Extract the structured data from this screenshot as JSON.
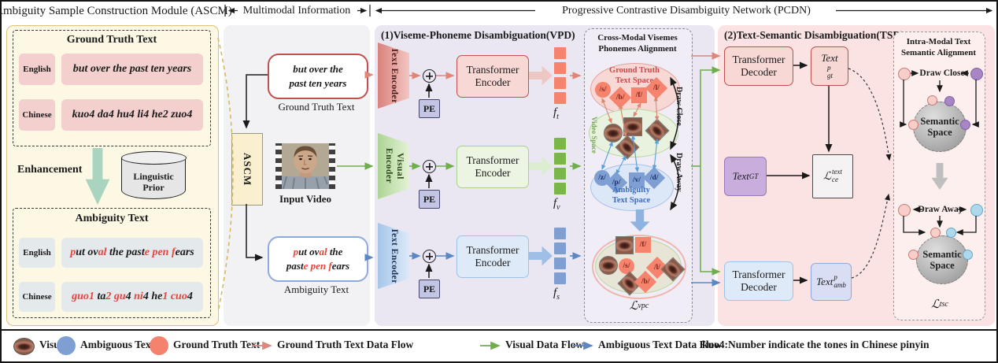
{
  "header": {
    "left": "Ambiguity Sample Construction Module (ASCM)",
    "middle": "Multimodal Information",
    "right": "Progressive Contrastive Disambiguity Network (PCDN)"
  },
  "ascm": {
    "ground_truth": {
      "title": "Ground Truth Text",
      "rows": [
        {
          "lang": "English",
          "text": "but over the past ten years"
        },
        {
          "lang": "Chinese",
          "text": "kuo4 da4 hu4 li4 he2 zuo4"
        }
      ]
    },
    "enhancement": "Enhancement",
    "prior": "Linguistic Prior",
    "ambiguity": {
      "title": "Ambiguity Text",
      "rows": [
        {
          "lang": "English",
          "segments": [
            [
              "p",
              1
            ],
            [
              "ut ov",
              0
            ],
            [
              "al",
              1
            ],
            [
              " the past",
              0
            ],
            [
              "e",
              1
            ],
            [
              " ",
              0
            ],
            [
              "pen",
              1
            ],
            [
              " ",
              0
            ],
            [
              "f",
              1
            ],
            [
              "ears",
              0
            ]
          ]
        },
        {
          "lang": "Chinese",
          "segments": [
            [
              "guo1",
              1
            ],
            [
              " ta",
              0
            ],
            [
              "2",
              1
            ],
            [
              " ",
              0
            ],
            [
              "gu",
              1
            ],
            [
              "4 ",
              0
            ],
            [
              "ni",
              1
            ],
            [
              "4",
              0
            ],
            [
              " he",
              0
            ],
            [
              "1",
              1
            ],
            [
              " ",
              0
            ],
            [
              "cuo",
              1
            ],
            [
              "4",
              0
            ]
          ]
        }
      ]
    }
  },
  "multimodal": {
    "ascm_box": "ASCM",
    "gt_lines": [
      "but over the",
      "past ten years"
    ],
    "gt_caption": "Ground Truth Text",
    "video_caption": "Input Video",
    "amb_segments": [
      [
        [
          "p",
          1
        ],
        [
          "ut ov",
          0
        ],
        [
          "al",
          1
        ],
        [
          " the",
          0
        ]
      ],
      [
        [
          "past",
          0
        ],
        [
          "e",
          1
        ],
        [
          " ",
          0
        ],
        [
          "pen",
          1
        ],
        [
          " ",
          0
        ],
        [
          "f",
          1
        ],
        [
          "ears",
          0
        ]
      ]
    ],
    "amb_caption": "Ambiguity Text"
  },
  "vpd": {
    "title": "(1)Viseme-Phoneme Disambiguation(VPD)",
    "pe": "PE",
    "transformer": [
      "Transformer",
      "Encoder"
    ],
    "f_base": "f",
    "rows": [
      {
        "encoder": "Text Encoder",
        "f_sub": "t"
      },
      {
        "encoder": "Visual Encoder",
        "f_sub": "v"
      },
      {
        "encoder": "Text Encoder",
        "f_sub": "s"
      }
    ]
  },
  "cross_modal": {
    "title": [
      "Cross-Modal Visemes",
      "Phonemes Alignment"
    ],
    "gt_space": {
      "label": [
        "Ground Truth",
        "Text Space"
      ],
      "phonemes": [
        "/s/",
        "/b/",
        "/f/",
        "/l/"
      ]
    },
    "video_space": {
      "label": "Video Space"
    },
    "amb_space": {
      "label": [
        "Ambiguity",
        "Text Space"
      ],
      "phonemes": [
        "/z/",
        "/p/",
        "/v/",
        "/d/"
      ]
    },
    "draw_close": "Draw Close",
    "draw_away": "Draw Away",
    "fused_phonemes": [
      "/f/",
      "/s/",
      "/l/",
      "/b/"
    ],
    "loss_vpc": {
      "base": "ℒ",
      "sub": "vpc"
    }
  },
  "tsd": {
    "title": "(2)Text-Semantic Disambiguation(TSD)",
    "decoder": [
      "Transformer",
      "Decoder"
    ],
    "text_gt_p": {
      "base": "Text",
      "sup": "p",
      "sub": "gt"
    },
    "text_gt": {
      "base": "Text",
      "sub": "GT"
    },
    "loss_ce": {
      "base": "ℒ",
      "sup": "text",
      "sub": "ce"
    },
    "text_amb_p": {
      "base": "Text",
      "sup": "p",
      "sub": "amb"
    }
  },
  "intra": {
    "title": [
      "Intra-Modal Text",
      "Semantic Alignment"
    ],
    "draw_close": "Draw Close",
    "draw_away": "Draw Away",
    "semantic": [
      "Semantic",
      "Space"
    ],
    "loss_tsc": {
      "base": "ℒ",
      "sub": "tsc"
    }
  },
  "legend": {
    "visual": "Visual",
    "ambiguous": "Ambiguous Text",
    "ground_truth": "Ground Truth Text",
    "gt_flow": "Ground Truth Text Data Flow",
    "visual_flow": "Visual Data Flow",
    "amb_flow": "Ambiguous Text Data Flow",
    "note": "kuo4:Number indicate the tones in Chinese pinyin"
  },
  "colors": {
    "red": "#c0504d",
    "salmon": "#f5836e",
    "green": "#70ad47",
    "blue": "#7f9fd3",
    "purple": "#b08cc8",
    "cyan": "#aed9ec"
  }
}
